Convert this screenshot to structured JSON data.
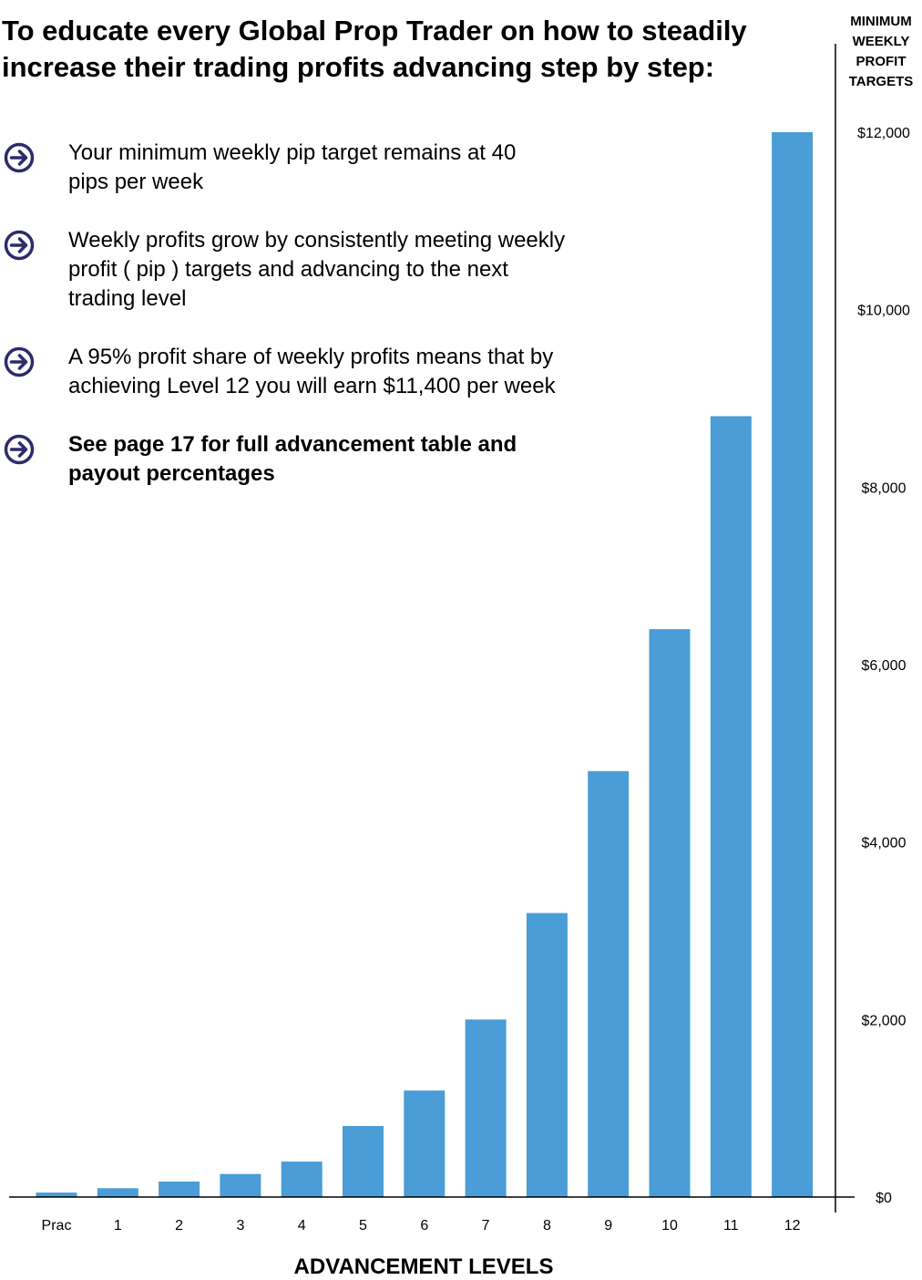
{
  "header": {
    "title": "To educate every Global Prop Trader on how to steadily increase their trading profits advancing step by step:",
    "axis_title_lines": [
      "MINIMUM",
      "WEEKLY",
      "PROFIT",
      "TARGETS"
    ]
  },
  "bullets": [
    {
      "text": "Your minimum weekly pip target remains at 40 pips per week",
      "bold": false
    },
    {
      "text": "Weekly profits grow by consistently meeting weekly profit ( pip ) targets and advancing to the next trading level",
      "bold": false
    },
    {
      "text": "A 95% profit share of weekly profits means that by achieving Level 12 you will earn $11,400 per week",
      "bold": false
    },
    {
      "text": "See page 17 for full advancement table and payout percentages",
      "bold": true
    }
  ],
  "colors": {
    "bar": "#4a9dd6",
    "icon": "#2e2a6b",
    "axis": "#000000"
  },
  "chart_data": {
    "type": "bar",
    "categories": [
      "Prac",
      "1",
      "2",
      "3",
      "4",
      "5",
      "6",
      "7",
      "8",
      "9",
      "10",
      "11",
      "12"
    ],
    "values": [
      50,
      100,
      175,
      260,
      400,
      800,
      1200,
      2000,
      3200,
      4800,
      6400,
      8800,
      12000
    ],
    "title": "",
    "xlabel": "ADVANCEMENT LEVELS",
    "ylabel": "MINIMUM WEEKLY PROFIT TARGETS",
    "y_axis_side": "right",
    "ylim": [
      0,
      12000
    ],
    "yticks": [
      0,
      2000,
      4000,
      6000,
      8000,
      10000,
      12000
    ],
    "ytick_labels": [
      "$0",
      "$2,000",
      "$4,000",
      "$6,000",
      "$8,000",
      "$10,000",
      "$12,000"
    ],
    "grid": false,
    "legend": "none"
  }
}
